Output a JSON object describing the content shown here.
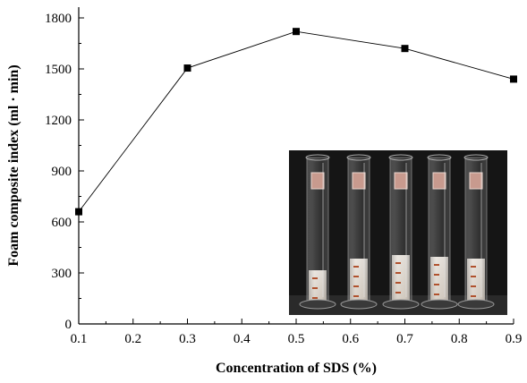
{
  "chart_data": {
    "type": "line",
    "title": "",
    "xlabel": "Concentration of SDS (%)",
    "ylabel": "Foam composite index (ml · min)",
    "xlim": [
      0.1,
      0.9
    ],
    "ylim": [
      0,
      1800
    ],
    "xticks": [
      "0.1",
      "0.2",
      "0.3",
      "0.4",
      "0.5",
      "0.6",
      "0.7",
      "0.8",
      "0.9"
    ],
    "yticks": [
      "0",
      "300",
      "600",
      "900",
      "1200",
      "1500",
      "1800"
    ],
    "x": [
      0.1,
      0.3,
      0.5,
      0.7,
      0.9
    ],
    "series": [
      {
        "values": [
          660,
          1505,
          1720,
          1620,
          1440
        ],
        "marker": "square",
        "color": "#000000"
      }
    ],
    "grid": false,
    "inset_image": "photo of five graduated cylinders containing foam"
  }
}
